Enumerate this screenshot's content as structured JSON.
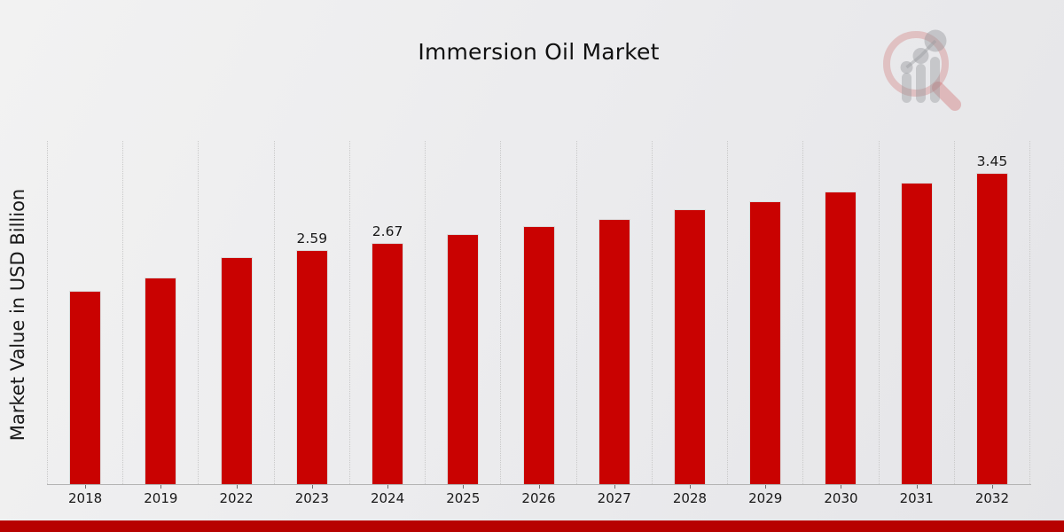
{
  "title": "Immersion Oil Market",
  "branding": {
    "logo": "magnifier-bar-chart-watermark"
  },
  "chart_data": {
    "type": "bar",
    "title": "Immersion Oil Market",
    "xlabel": "",
    "ylabel": "Market Value in USD Billion",
    "categories": [
      "2018",
      "2019",
      "2022",
      "2023",
      "2024",
      "2025",
      "2026",
      "2027",
      "2028",
      "2029",
      "2030",
      "2031",
      "2032"
    ],
    "values": [
      2.14,
      2.29,
      2.51,
      2.59,
      2.67,
      2.77,
      2.86,
      2.94,
      3.04,
      3.13,
      3.24,
      3.34,
      3.45
    ],
    "bar_labels": [
      "",
      "",
      "",
      "2.59",
      "2.67",
      "",
      "",
      "",
      "",
      "",
      "",
      "",
      "3.45"
    ],
    "ylim": [
      0,
      3.8
    ],
    "grid": "vertical-dotted",
    "legend": "none",
    "bar_color": "#c90201"
  },
  "colors": {
    "bar": "#c90201",
    "bar_border": "#dcdcdc",
    "bottom_stripe": "#b70100",
    "axis_line": "#b3b3b3",
    "gridline": "#c9c9c9",
    "text": "#1a1a1a",
    "logo_ring": "rgba(201,90,90,0.30)",
    "logo_gray": "rgba(150,152,158,0.42)"
  }
}
